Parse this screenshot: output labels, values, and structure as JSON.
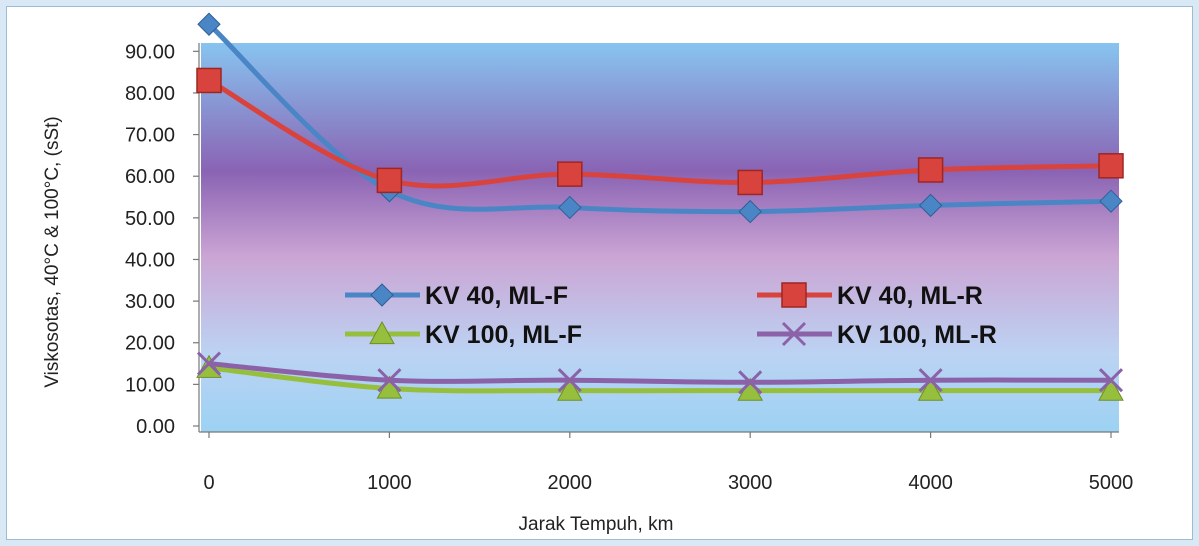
{
  "chart_data": {
    "type": "line",
    "title": "",
    "xlabel": "Jarak Tempuh, km",
    "ylabel": "Viskosotas, 40°C & 100°C, (sSt)",
    "x": [
      0,
      1000,
      2000,
      3000,
      4000,
      5000
    ],
    "x_tick_labels": [
      "0",
      "1000",
      "2000",
      "3000",
      "4000",
      "5000"
    ],
    "y_tick_labels": [
      "0.00",
      "10.00",
      "20.00",
      "30.00",
      "40.00",
      "50.00",
      "60.00",
      "70.00",
      "80.00",
      "90.00"
    ],
    "ylim": [
      0,
      92
    ],
    "grid": false,
    "legend_placement": "center",
    "series": [
      {
        "name": "KV 40, ML-F",
        "values": [
          96.5,
          56.5,
          52.5,
          51.5,
          53.0,
          54.0
        ],
        "color": "#4a86c5",
        "marker": "diamond"
      },
      {
        "name": "KV 40, ML-R",
        "values": [
          83.0,
          59.0,
          60.5,
          58.5,
          61.5,
          62.5
        ],
        "color": "#d9433d",
        "marker": "square"
      },
      {
        "name": "KV 100, ML-F",
        "values": [
          14.0,
          9.0,
          8.5,
          8.5,
          8.5,
          8.5
        ],
        "color": "#97bf3e",
        "marker": "triangle"
      },
      {
        "name": "KV 100, ML-R",
        "values": [
          15.0,
          11.0,
          11.0,
          10.5,
          11.0,
          11.0
        ],
        "color": "#8b62a8",
        "marker": "x"
      }
    ]
  }
}
